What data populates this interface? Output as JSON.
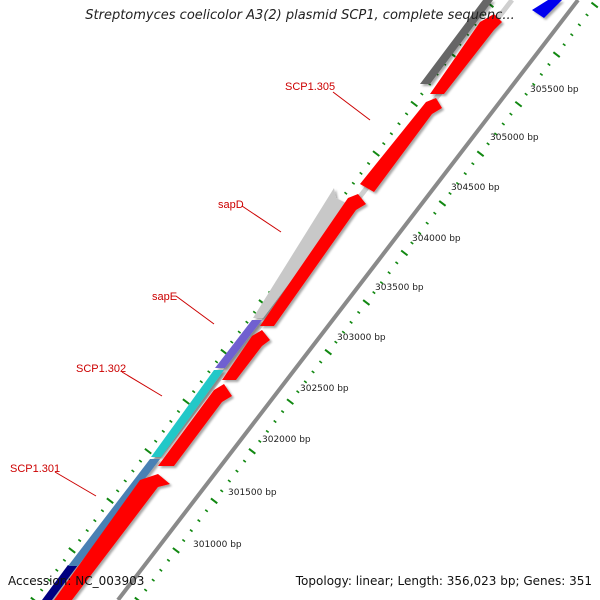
{
  "title": "Streptomyces coelicolor A3(2) plasmid SCP1, complete sequenc...",
  "footer": {
    "accession": "Accession: NC_003903",
    "summary": "Topology: linear; Length: 356,023 bp; Genes: 351"
  },
  "colors": {
    "forward_strand": "#ff0000",
    "grey_gene": "#c8c8c8",
    "dark_grey_gene": "#666666",
    "purple_gene": "#7060d0",
    "cyan_gene": "#20c8c8",
    "steelblue_gene": "#4a80b4",
    "blue_gene": "#0000ee",
    "ticks": "#118811",
    "label_text": "#cc0000"
  },
  "gene_labels": [
    {
      "id": "scp1-301",
      "text": "SCP1.301"
    },
    {
      "id": "scp1-302",
      "text": "SCP1.302"
    },
    {
      "id": "sape",
      "text": "sapE"
    },
    {
      "id": "sapd",
      "text": "sapD"
    },
    {
      "id": "scp1-305",
      "text": "SCP1.305"
    }
  ],
  "scale_labels": [
    "301000 bp",
    "301500 bp",
    "302000 bp",
    "302500 bp",
    "303000 bp",
    "303500 bp",
    "304000 bp",
    "304500 bp",
    "305000 bp",
    "305500 bp"
  ]
}
